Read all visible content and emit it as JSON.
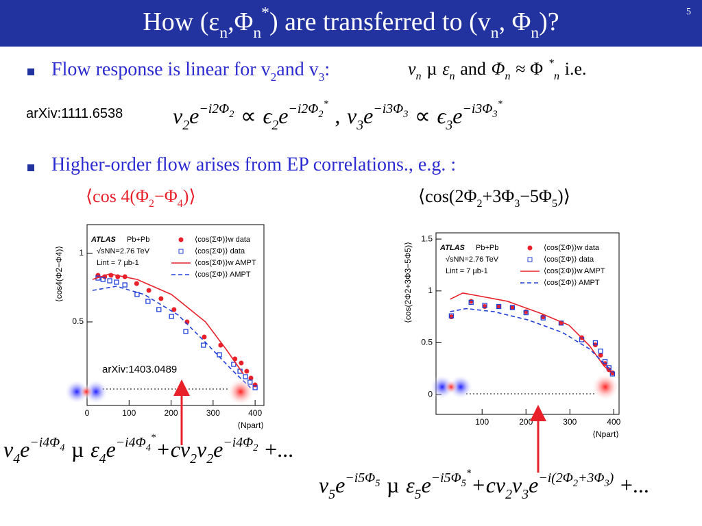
{
  "slide": {
    "title": [
      "How (ε",
      "n",
      ",Φ",
      "n",
      "*",
      ") are transferred to (v",
      "n",
      ", Φ",
      "n",
      ")?"
    ],
    "page_number": "5",
    "bullet1": [
      "Flow response is linear for v",
      "2",
      " and v",
      "3",
      ":"
    ],
    "formula1": [
      "v",
      "n",
      "µ",
      "ε",
      "n",
      "and",
      "Φ",
      "n",
      "≈ Φ",
      "*",
      "n",
      "i.e."
    ],
    "ref1": "arXiv:1111.6538",
    "formula2": [
      "v",
      "2",
      "e",
      "−i2Φ",
      "2",
      "∝",
      "ϵ",
      "2",
      "e",
      "−i2Φ",
      "2",
      "*",
      ",",
      "v",
      "3",
      "e",
      "−i3Φ",
      "3",
      "∝",
      "ϵ",
      "3",
      "e",
      "−i3Φ",
      "3",
      "*"
    ],
    "bullet2": "Higher-order flow arises from EP correlations., e.g. :",
    "corr1": [
      "⟨",
      "cos 4(Φ",
      "2",
      " −Φ",
      "4",
      ")",
      "⟩"
    ],
    "corr2": [
      "⟨",
      "cos(2Φ",
      "2",
      " +3Φ",
      "3",
      " −5Φ",
      "5",
      ")",
      "⟩"
    ],
    "formula3": [
      "v",
      "4",
      "e",
      "−i4Φ",
      "4",
      "µ",
      "ε",
      "4",
      "e",
      "−i4Φ",
      "4",
      "*",
      "+cv",
      "2",
      "v",
      "2",
      "e",
      "−i4Φ",
      "2",
      "+..."
    ],
    "formula4": [
      "v",
      "5",
      "e",
      "−i5Φ",
      "5",
      "µ",
      "ε",
      "5",
      "e",
      "−i5Φ",
      "5",
      "*",
      "+cv",
      "2",
      "v",
      "3",
      "e",
      "−i(2Φ",
      "2",
      "+3Φ",
      "3",
      ")",
      "+..."
    ]
  },
  "chart_data": [
    {
      "type": "scatter",
      "ylabel": "⟨cos4(Φ2−Φ4)⟩",
      "xlabel": "⟨Npart⟩",
      "annotations": [
        "ATLAS",
        "Pb+Pb",
        "√sNN=2.76 TeV",
        "Lint = 7 µb-1"
      ],
      "note": "arXiv:1403.0489",
      "xlim": [
        0,
        421
      ],
      "xticks": [
        0,
        100,
        200,
        300,
        400
      ],
      "ylim": [
        -0.11,
        1.21
      ],
      "yticks": [
        0.5,
        1
      ],
      "series": [
        {
          "name": "⟨cos(ΣΦ)⟩w data",
          "style": "circle",
          "color": "#e8202a",
          "x": [
            26,
            42,
            57,
            73,
            90,
            118,
            147,
            176,
            207,
            238,
            279,
            318,
            352,
            367,
            380,
            390,
            400
          ],
          "values": [
            0.84,
            0.83,
            0.84,
            0.83,
            0.83,
            0.78,
            0.73,
            0.67,
            0.59,
            0.5,
            0.39,
            0.33,
            0.23,
            0.2,
            0.14,
            0.09,
            0.04
          ]
        },
        {
          "name": "⟨cos(ΣΦ)⟩ data",
          "style": "square",
          "color": "#2040d8",
          "x": [
            26,
            38,
            54,
            70,
            90,
            119,
            145,
            171,
            201,
            235,
            277,
            315,
            349,
            364,
            377,
            388,
            400
          ],
          "values": [
            0.82,
            0.81,
            0.8,
            0.79,
            0.77,
            0.7,
            0.65,
            0.59,
            0.54,
            0.43,
            0.33,
            0.26,
            0.19,
            0.14,
            0.1,
            0.06,
            0.02
          ]
        },
        {
          "name": "⟨cos(ΣΦ)⟩w AMPT",
          "style": "line",
          "color": "#e8202a",
          "x": [
            13,
            54,
            119,
            201,
            282,
            331,
            372
          ],
          "values": [
            0.81,
            0.85,
            0.81,
            0.7,
            0.5,
            0.3,
            0.12
          ]
        },
        {
          "name": "⟨cos(ΣΦ)⟩ AMPT",
          "style": "dashed",
          "color": "#2040d8",
          "x": [
            13,
            70,
            136,
            217,
            282,
            348,
            389
          ],
          "values": [
            0.73,
            0.76,
            0.7,
            0.55,
            0.35,
            0.14,
            0.02
          ]
        }
      ]
    },
    {
      "type": "scatter",
      "ylabel": "⟨cos(2Φ2+3Φ3−5Φ5)⟩",
      "xlabel": "⟨Npart⟩",
      "annotations": [
        "ATLAS",
        "Pb+Pb",
        "√sNN=2.76 TeV",
        "Lint = 7 µb-1"
      ],
      "xlim": [
        -5,
        412
      ],
      "xticks": [
        100,
        200,
        300,
        400
      ],
      "ylim": [
        -0.19,
        1.56
      ],
      "yticks": [
        0,
        0.5,
        1,
        1.5
      ],
      "series": [
        {
          "name": "⟨cos(ΣΦ)⟩w data",
          "style": "circle",
          "color": "#e8202a",
          "x": [
            30,
            75,
            106,
            138,
            169,
            200,
            239,
            280,
            327,
            358,
            370,
            380,
            389,
            397
          ],
          "values": [
            0.75,
            0.9,
            0.85,
            0.85,
            0.84,
            0.8,
            0.75,
            0.69,
            0.55,
            0.48,
            0.38,
            0.3,
            0.24,
            0.21
          ]
        },
        {
          "name": "⟨cos(ΣΦ)⟩ data",
          "style": "square",
          "color": "#2040d8",
          "x": [
            30,
            75,
            106,
            138,
            169,
            200,
            239,
            280,
            327,
            358,
            370,
            380,
            389,
            397
          ],
          "values": [
            0.76,
            0.89,
            0.86,
            0.85,
            0.84,
            0.79,
            0.74,
            0.69,
            0.53,
            0.5,
            0.42,
            0.32,
            0.26,
            0.2
          ]
        },
        {
          "name": "⟨cos(ΣΦ)⟩w AMPT",
          "style": "line",
          "color": "#e8202a",
          "x": [
            27,
            56,
            95,
            158,
            236,
            298,
            345,
            377,
            400
          ],
          "values": [
            0.92,
            0.98,
            0.95,
            0.9,
            0.78,
            0.67,
            0.47,
            0.28,
            0.19
          ]
        },
        {
          "name": "⟨cos(ΣΦ)⟩ AMPT",
          "style": "dashed",
          "color": "#2040d8",
          "x": [
            27,
            64,
            127,
            205,
            283,
            345,
            392
          ],
          "values": [
            0.8,
            0.83,
            0.8,
            0.72,
            0.6,
            0.44,
            0.24
          ]
        }
      ]
    }
  ]
}
